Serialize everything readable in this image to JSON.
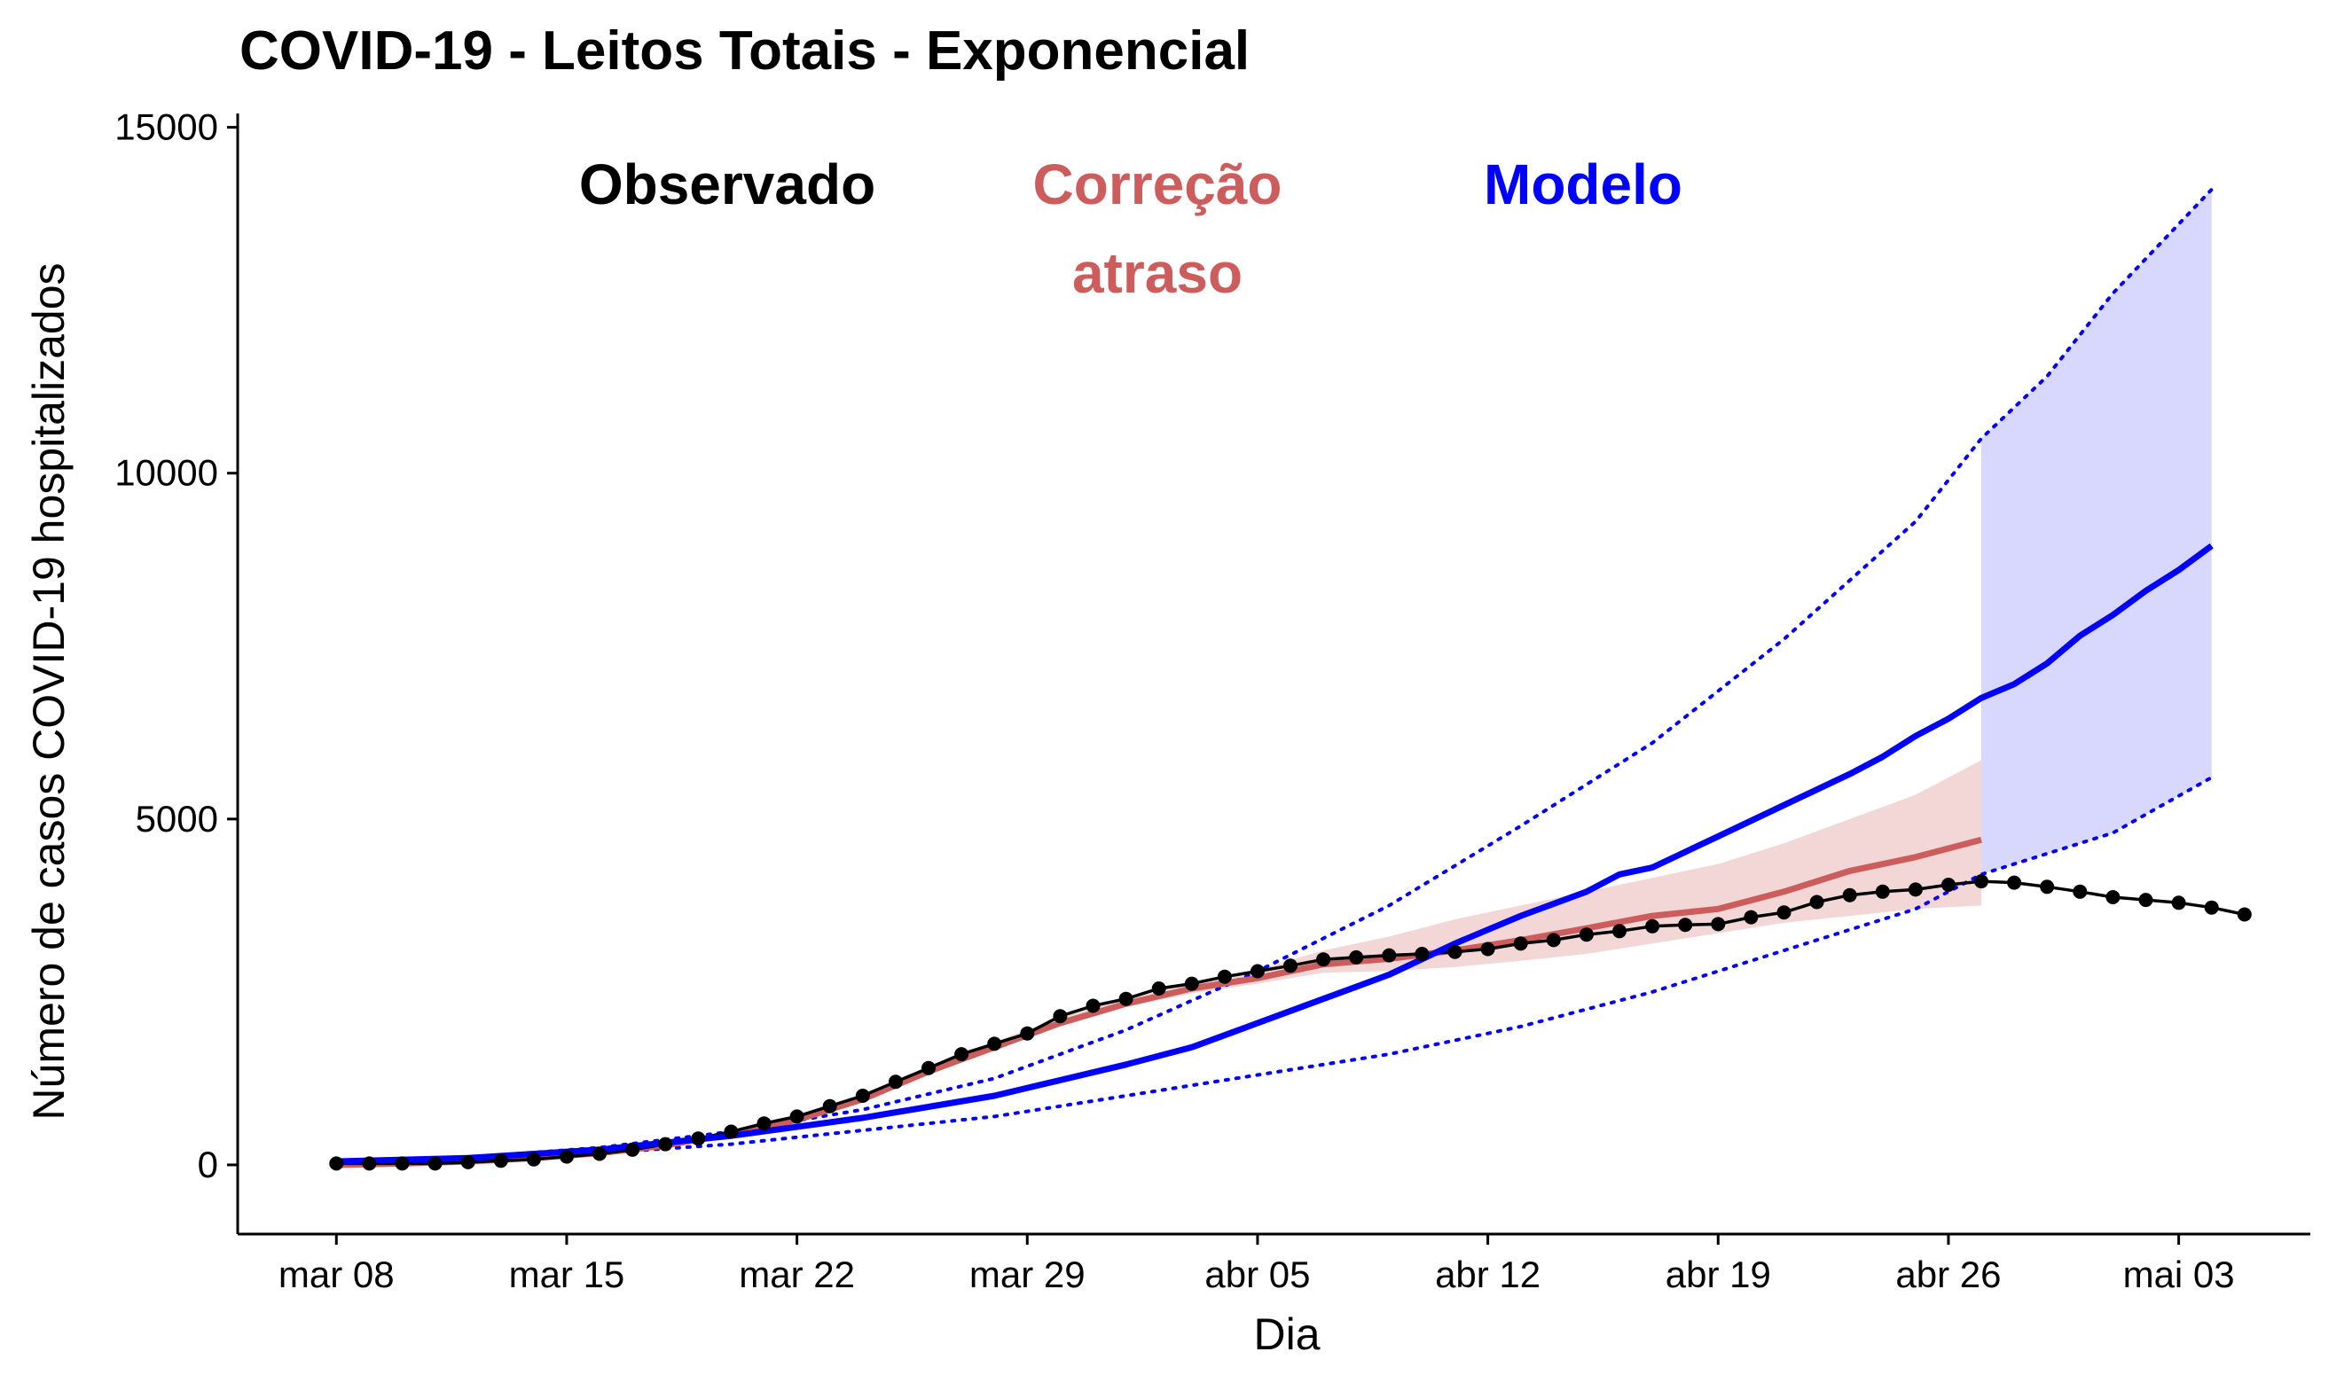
{
  "chart_data": {
    "type": "line",
    "title": "COVID-19 - Leitos Totais - Exponencial",
    "xlabel": "Dia",
    "ylabel": "Número de casos COVID-19 hospitalizados",
    "ylim": [
      -1000,
      15200
    ],
    "y_ticks": [
      0,
      5000,
      10000,
      15000
    ],
    "y_tick_labels": [
      "0",
      "5000",
      "10000",
      "15000"
    ],
    "x_range": [
      "2020-03-05",
      "2020-05-07"
    ],
    "x_ticks": [
      "2020-03-08",
      "2020-03-15",
      "2020-03-22",
      "2020-03-29",
      "2020-04-05",
      "2020-04-12",
      "2020-04-19",
      "2020-04-26",
      "2020-05-03"
    ],
    "x_tick_labels": [
      "mar 08",
      "mar 15",
      "mar 22",
      "mar 29",
      "abr 05",
      "abr 12",
      "abr 19",
      "abr 26",
      "mai 03"
    ],
    "grid": false,
    "colors": {
      "observado": "#000000",
      "correcao": "#cd5c5c",
      "correcao_band": "#f3d6d6",
      "modelo": "#0000ff",
      "modelo_band": "#d8d8ff"
    },
    "annotations": [
      {
        "text": "Observado",
        "color": "#000000"
      },
      {
        "text": "Correção\natraso",
        "color": "#cd5c5c"
      },
      {
        "text": "Modelo",
        "color": "#0000ff"
      }
    ],
    "series": [
      {
        "key": "observado",
        "style": "line+points",
        "x": [
          "2020-03-08",
          "2020-03-09",
          "2020-03-10",
          "2020-03-11",
          "2020-03-12",
          "2020-03-13",
          "2020-03-14",
          "2020-03-15",
          "2020-03-16",
          "2020-03-17",
          "2020-03-18",
          "2020-03-19",
          "2020-03-20",
          "2020-03-21",
          "2020-03-22",
          "2020-03-23",
          "2020-03-24",
          "2020-03-25",
          "2020-03-26",
          "2020-03-27",
          "2020-03-28",
          "2020-03-29",
          "2020-03-30",
          "2020-03-31",
          "2020-04-01",
          "2020-04-02",
          "2020-04-03",
          "2020-04-04",
          "2020-04-05",
          "2020-04-06",
          "2020-04-07",
          "2020-04-08",
          "2020-04-09",
          "2020-04-10",
          "2020-04-11",
          "2020-04-12",
          "2020-04-13",
          "2020-04-14",
          "2020-04-15",
          "2020-04-16",
          "2020-04-17",
          "2020-04-18",
          "2020-04-19",
          "2020-04-20",
          "2020-04-21",
          "2020-04-22",
          "2020-04-23",
          "2020-04-24",
          "2020-04-25",
          "2020-04-26",
          "2020-04-27",
          "2020-04-28",
          "2020-04-29",
          "2020-04-30",
          "2020-05-01",
          "2020-05-02",
          "2020-05-03",
          "2020-05-04",
          "2020-05-05"
        ],
        "values": [
          20,
          20,
          20,
          20,
          40,
          60,
          80,
          120,
          160,
          220,
          300,
          380,
          480,
          600,
          700,
          850,
          1000,
          1200,
          1400,
          1600,
          1750,
          1900,
          2150,
          2300,
          2400,
          2550,
          2620,
          2720,
          2800,
          2880,
          2970,
          3000,
          3030,
          3050,
          3080,
          3120,
          3200,
          3250,
          3330,
          3380,
          3450,
          3470,
          3480,
          3580,
          3650,
          3800,
          3900,
          3950,
          3980,
          4050,
          4100,
          4080,
          4020,
          3950,
          3870,
          3830,
          3790,
          3720,
          3620
        ]
      },
      {
        "key": "correcao",
        "style": "line",
        "x": [
          "2020-03-08",
          "2020-03-10",
          "2020-03-12",
          "2020-03-14",
          "2020-03-16",
          "2020-03-18",
          "2020-03-20",
          "2020-03-22",
          "2020-03-24",
          "2020-03-26",
          "2020-03-28",
          "2020-03-30",
          "2020-04-01",
          "2020-04-03",
          "2020-04-05",
          "2020-04-07",
          "2020-04-09",
          "2020-04-11",
          "2020-04-13",
          "2020-04-15",
          "2020-04-17",
          "2020-04-19",
          "2020-04-21",
          "2020-04-23",
          "2020-04-25",
          "2020-04-27"
        ],
        "values": [
          0,
          20,
          50,
          100,
          170,
          280,
          450,
          650,
          950,
          1350,
          1700,
          2050,
          2330,
          2550,
          2700,
          2900,
          2980,
          3100,
          3250,
          3420,
          3600,
          3700,
          3950,
          4250,
          4450,
          4700
        ],
        "band_upper": [
          0,
          20,
          60,
          110,
          180,
          300,
          470,
          680,
          1000,
          1420,
          1780,
          2130,
          2420,
          2650,
          2820,
          3100,
          3300,
          3550,
          3750,
          3950,
          4150,
          4350,
          4650,
          5000,
          5350,
          5850
        ],
        "band_lower": [
          0,
          20,
          45,
          90,
          160,
          260,
          430,
          630,
          920,
          1300,
          1660,
          2000,
          2280,
          2480,
          2620,
          2780,
          2800,
          2860,
          2950,
          3050,
          3200,
          3350,
          3500,
          3600,
          3700,
          3750
        ]
      },
      {
        "key": "modelo",
        "style": "line",
        "x": [
          "2020-03-08",
          "2020-03-12",
          "2020-03-16",
          "2020-03-20",
          "2020-03-24",
          "2020-03-28",
          "2020-04-01",
          "2020-04-03",
          "2020-04-05",
          "2020-04-07",
          "2020-04-09",
          "2020-04-11",
          "2020-04-13",
          "2020-04-15",
          "2020-04-16",
          "2020-04-17",
          "2020-04-19",
          "2020-04-21",
          "2020-04-23",
          "2020-04-24",
          "2020-04-25",
          "2020-04-26",
          "2020-04-27",
          "2020-04-28",
          "2020-04-29",
          "2020-04-30",
          "2020-05-01",
          "2020-05-02",
          "2020-05-03",
          "2020-05-04"
        ],
        "values": [
          50,
          100,
          220,
          420,
          680,
          1000,
          1450,
          1700,
          2050,
          2400,
          2750,
          3200,
          3600,
          3950,
          4200,
          4300,
          4750,
          5200,
          5650,
          5900,
          6200,
          6450,
          6750,
          6950,
          7250,
          7650,
          7950,
          8300,
          8600,
          8950
        ]
      },
      {
        "key": "modelo_upper",
        "style": "dotted",
        "x": [
          "2020-03-08",
          "2020-03-12",
          "2020-03-16",
          "2020-03-20",
          "2020-03-24",
          "2020-03-28",
          "2020-04-01",
          "2020-04-05",
          "2020-04-09",
          "2020-04-13",
          "2020-04-17",
          "2020-04-21",
          "2020-04-25",
          "2020-04-27",
          "2020-04-29",
          "2020-05-01",
          "2020-05-04"
        ],
        "values": [
          50,
          110,
          250,
          480,
          800,
          1250,
          1950,
          2800,
          3750,
          4900,
          6100,
          7600,
          9300,
          10500,
          11400,
          12600,
          14100
        ]
      },
      {
        "key": "modelo_lower",
        "style": "dotted",
        "x": [
          "2020-03-08",
          "2020-03-12",
          "2020-03-16",
          "2020-03-20",
          "2020-03-24",
          "2020-03-28",
          "2020-04-01",
          "2020-04-05",
          "2020-04-09",
          "2020-04-13",
          "2020-04-17",
          "2020-04-21",
          "2020-04-25",
          "2020-04-27",
          "2020-04-29",
          "2020-05-01",
          "2020-05-04"
        ],
        "values": [
          40,
          80,
          170,
          300,
          500,
          700,
          1000,
          1300,
          1600,
          2000,
          2500,
          3100,
          3700,
          4200,
          4500,
          4800,
          5600
        ]
      },
      {
        "key": "modelo_band",
        "style": "band",
        "x": [
          "2020-04-27",
          "2020-04-29",
          "2020-05-01",
          "2020-05-04"
        ],
        "upper": [
          10500,
          11400,
          12600,
          14100
        ],
        "lower": [
          4200,
          4500,
          4800,
          5600
        ]
      }
    ]
  }
}
